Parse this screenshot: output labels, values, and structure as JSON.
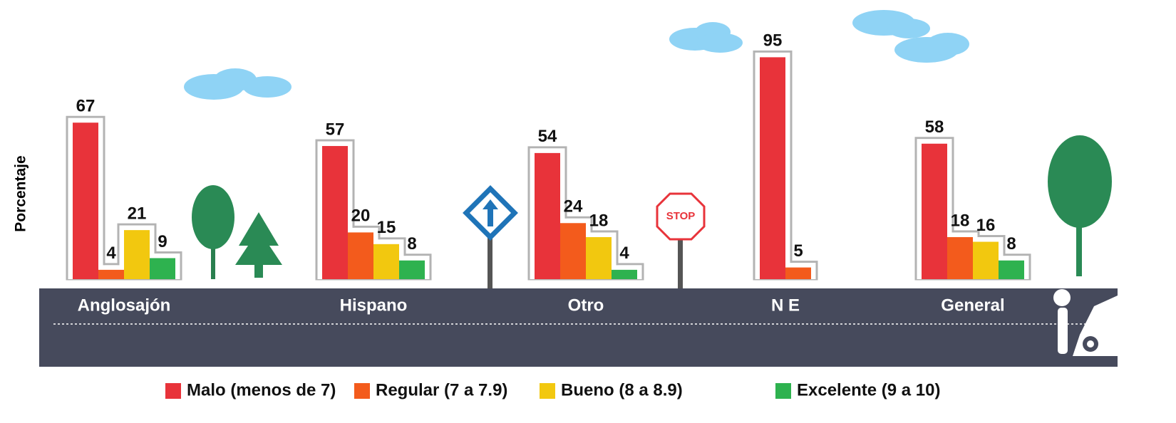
{
  "chart_data": {
    "type": "bar",
    "y_label": "Porcentaje",
    "categories": [
      "Anglosajón",
      "Hispano",
      "Otro",
      "N E",
      "General"
    ],
    "series": [
      {
        "name": "Malo (menos de 7)",
        "color": "#e8333a",
        "values": [
          67,
          57,
          54,
          95,
          58
        ]
      },
      {
        "name": "Regular (7 a 7.9)",
        "color": "#f35b1c",
        "values": [
          4,
          20,
          24,
          5,
          18
        ]
      },
      {
        "name": "Bueno (8 a 8.9)",
        "color": "#f2c80f",
        "values": [
          21,
          15,
          18,
          null,
          16
        ]
      },
      {
        "name": "Excelente (9 a 10)",
        "color": "#2eb24f",
        "values": [
          9,
          8,
          4,
          null,
          8
        ]
      }
    ],
    "ylim": [
      0,
      100
    ]
  }
}
